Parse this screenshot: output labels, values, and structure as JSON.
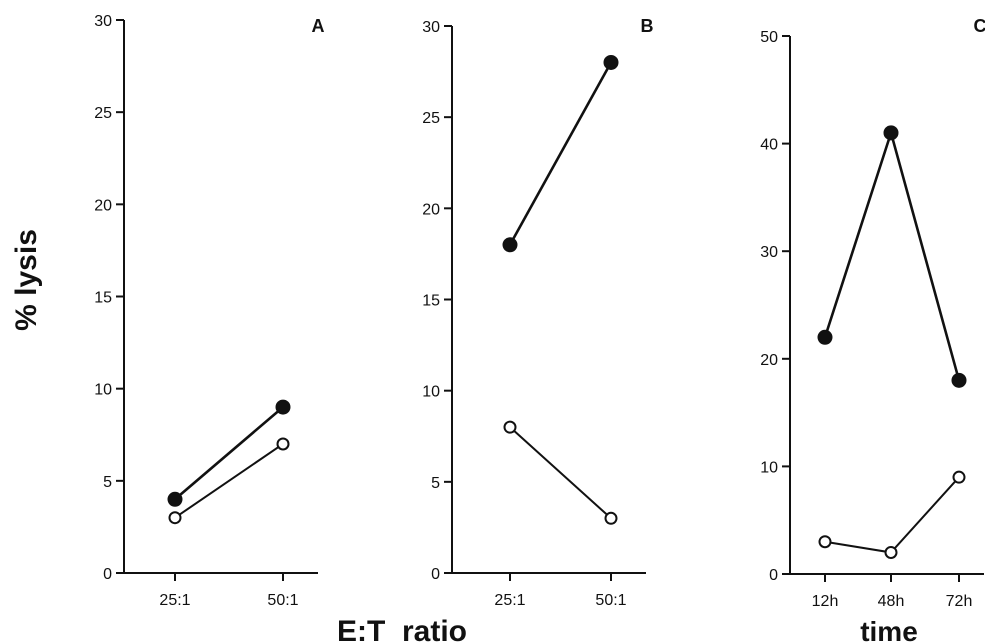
{
  "ylabel": "% lysis",
  "xlabels": {
    "ratio": "E:T  ratio",
    "time": "time"
  },
  "chart_data": [
    {
      "type": "line",
      "panel": "A",
      "categories": [
        "25:1",
        "50:1"
      ],
      "ylim": [
        0,
        30
      ],
      "yticks": [
        0,
        5,
        10,
        15,
        20,
        25,
        30
      ],
      "series": [
        {
          "marker": "filled",
          "values": [
            4,
            9
          ]
        },
        {
          "marker": "open",
          "values": [
            3,
            7
          ]
        }
      ]
    },
    {
      "type": "line",
      "panel": "B",
      "categories": [
        "25:1",
        "50:1"
      ],
      "ylim": [
        0,
        30
      ],
      "yticks": [
        0,
        5,
        10,
        15,
        20,
        25,
        30
      ],
      "series": [
        {
          "marker": "filled",
          "values": [
            18,
            28
          ]
        },
        {
          "marker": "open",
          "values": [
            8,
            3
          ]
        }
      ]
    },
    {
      "type": "line",
      "panel": "C",
      "categories": [
        "12h",
        "48h",
        "72h"
      ],
      "ylim": [
        0,
        50
      ],
      "yticks": [
        0,
        10,
        20,
        30,
        40,
        50
      ],
      "series": [
        {
          "marker": "filled",
          "values": [
            22,
            41,
            18
          ]
        },
        {
          "marker": "open",
          "values": [
            3,
            2,
            9
          ]
        }
      ]
    }
  ]
}
